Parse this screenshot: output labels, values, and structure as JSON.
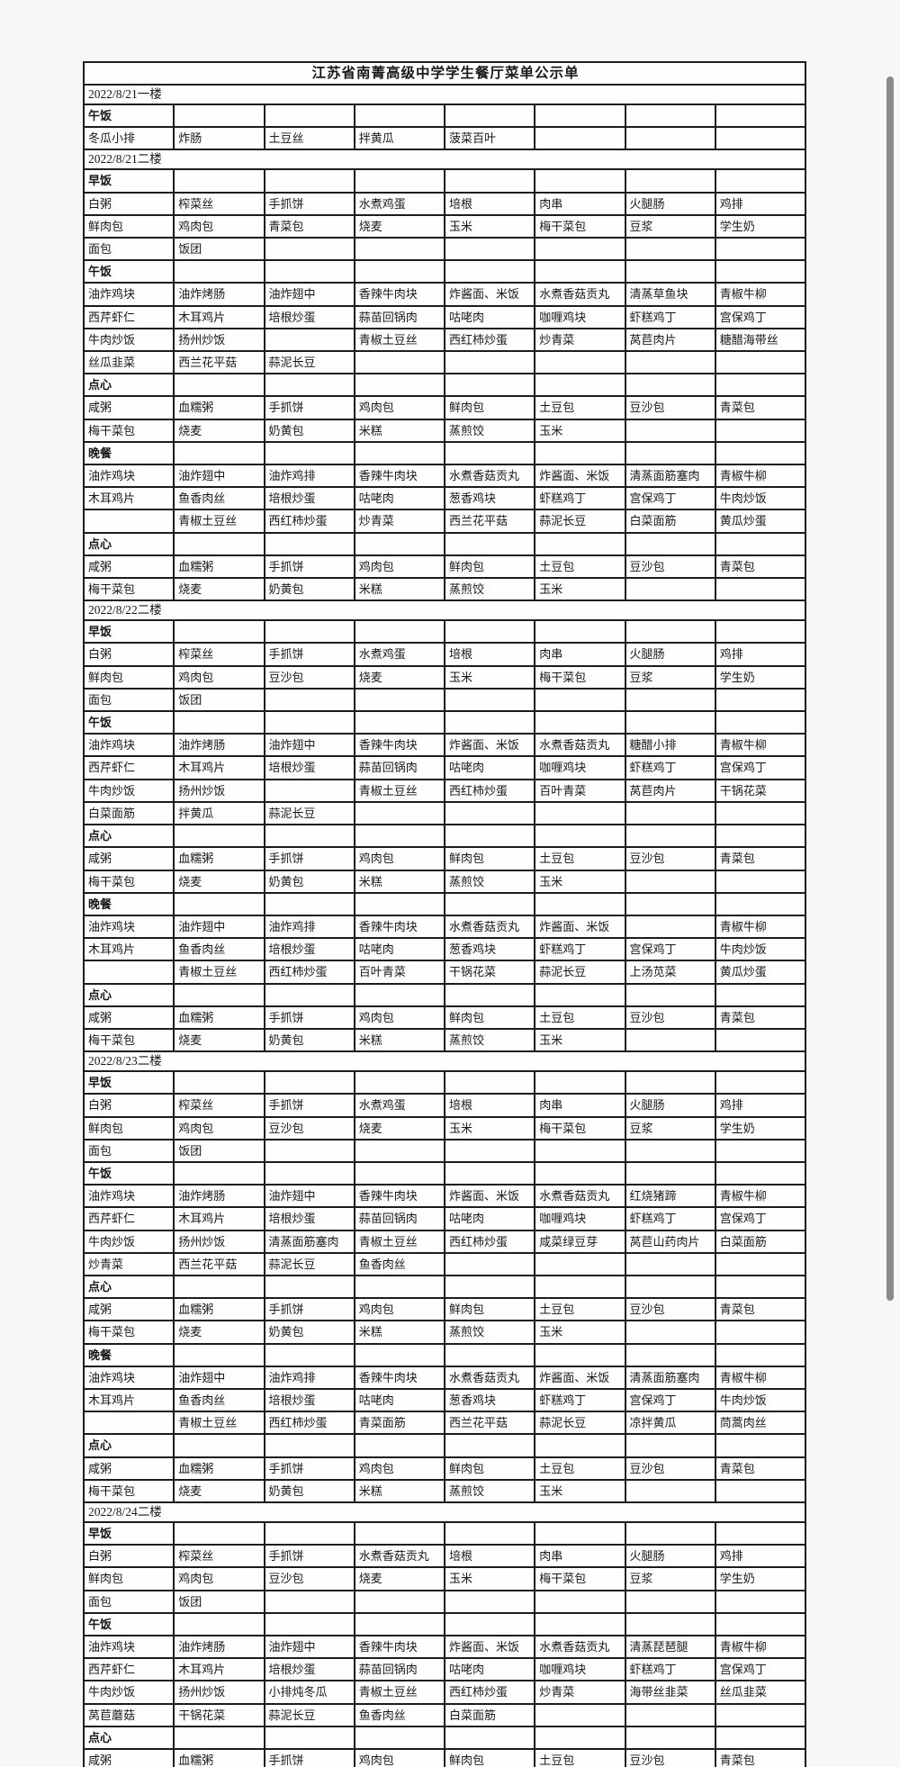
{
  "page": {
    "title": "江苏省南菁高级中学学生餐厅菜单公示单"
  },
  "colors": {
    "border": "#1c1c1c",
    "cell_background": "#fefefe",
    "page_background": "#f4f4f3",
    "scrollbar": "#8b8b8b"
  },
  "table": {
    "columns": 8,
    "rows": [
      {
        "type": "title",
        "text": "江苏省南菁高级中学学生餐厅菜单公示单"
      },
      {
        "type": "date",
        "text": "2022/8/21一楼"
      },
      {
        "type": "meal",
        "text": "午饭"
      },
      {
        "type": "dishes",
        "cells": [
          "冬瓜小排",
          "炸肠",
          "土豆丝",
          "拌黄瓜",
          "菠菜百叶",
          "",
          "",
          ""
        ]
      },
      {
        "type": "date",
        "text": "2022/8/21二楼"
      },
      {
        "type": "meal",
        "text": "早饭"
      },
      {
        "type": "dishes",
        "cells": [
          "白粥",
          "榨菜丝",
          "手抓饼",
          "水煮鸡蛋",
          "培根",
          "肉串",
          "火腿肠",
          "鸡排"
        ]
      },
      {
        "type": "dishes",
        "cells": [
          "鲜肉包",
          "鸡肉包",
          "青菜包",
          "烧麦",
          "玉米",
          "梅干菜包",
          "豆浆",
          "学生奶"
        ]
      },
      {
        "type": "dishes",
        "cells": [
          "面包",
          "饭团",
          "",
          "",
          "",
          "",
          "",
          ""
        ]
      },
      {
        "type": "meal",
        "text": "午饭"
      },
      {
        "type": "dishes",
        "cells": [
          "油炸鸡块",
          "油炸烤肠",
          "油炸翅中",
          "香辣牛肉块",
          "炸酱面、米饭",
          "水煮香菇贡丸",
          "清蒸草鱼块",
          "青椒牛柳"
        ]
      },
      {
        "type": "dishes",
        "cells": [
          "西芹虾仁",
          "木耳鸡片",
          "培根炒蛋",
          "蒜苗回锅肉",
          "咕咾肉",
          "咖喱鸡块",
          "虾糕鸡丁",
          "宫保鸡丁"
        ]
      },
      {
        "type": "dishes",
        "cells": [
          "牛肉炒饭",
          "扬州炒饭",
          "",
          "青椒土豆丝",
          "西红柿炒蛋",
          "炒青菜",
          "莴苣肉片",
          "糖醋海带丝"
        ]
      },
      {
        "type": "dishes",
        "cells": [
          "丝瓜韭菜",
          "西兰花平菇",
          "蒜泥长豆",
          "",
          "",
          "",
          "",
          ""
        ]
      },
      {
        "type": "meal",
        "text": "点心"
      },
      {
        "type": "dishes",
        "cells": [
          "咸粥",
          "血糯粥",
          "手抓饼",
          "鸡肉包",
          "鲜肉包",
          "土豆包",
          "豆沙包",
          "青菜包"
        ]
      },
      {
        "type": "dishes",
        "cells": [
          "梅干菜包",
          "烧麦",
          "奶黄包",
          "米糕",
          "蒸煎饺",
          "玉米",
          "",
          ""
        ]
      },
      {
        "type": "meal",
        "text": "晚餐"
      },
      {
        "type": "dishes",
        "cells": [
          "油炸鸡块",
          "油炸翅中",
          "油炸鸡排",
          "香辣牛肉块",
          "水煮香菇贡丸",
          "炸酱面、米饭",
          "清蒸面筋塞肉",
          "青椒牛柳"
        ]
      },
      {
        "type": "dishes",
        "cells": [
          "木耳鸡片",
          "鱼香肉丝",
          "培根炒蛋",
          "咕咾肉",
          "葱香鸡块",
          "虾糕鸡丁",
          "宫保鸡丁",
          "牛肉炒饭"
        ]
      },
      {
        "type": "dishes",
        "cells": [
          "",
          "青椒土豆丝",
          "西红柿炒蛋",
          "炒青菜",
          "西兰花平菇",
          "蒜泥长豆",
          "白菜面筋",
          "黄瓜炒蛋"
        ]
      },
      {
        "type": "meal",
        "text": "点心"
      },
      {
        "type": "dishes",
        "cells": [
          "咸粥",
          "血糯粥",
          "手抓饼",
          "鸡肉包",
          "鲜肉包",
          "土豆包",
          "豆沙包",
          "青菜包"
        ]
      },
      {
        "type": "dishes",
        "cells": [
          "梅干菜包",
          "烧麦",
          "奶黄包",
          "米糕",
          "蒸煎饺",
          "玉米",
          "",
          ""
        ]
      },
      {
        "type": "date",
        "text": "2022/8/22二楼"
      },
      {
        "type": "meal",
        "text": "早饭"
      },
      {
        "type": "dishes",
        "cells": [
          "白粥",
          "榨菜丝",
          "手抓饼",
          "水煮鸡蛋",
          "培根",
          "肉串",
          "火腿肠",
          "鸡排"
        ]
      },
      {
        "type": "dishes",
        "cells": [
          "鲜肉包",
          "鸡肉包",
          "豆沙包",
          "烧麦",
          "玉米",
          "梅干菜包",
          "豆浆",
          "学生奶"
        ]
      },
      {
        "type": "dishes",
        "cells": [
          "面包",
          "饭团",
          "",
          "",
          "",
          "",
          "",
          ""
        ]
      },
      {
        "type": "meal",
        "text": "午饭"
      },
      {
        "type": "dishes",
        "cells": [
          "油炸鸡块",
          "油炸烤肠",
          "油炸翅中",
          "香辣牛肉块",
          "炸酱面、米饭",
          "水煮香菇贡丸",
          "糖醋小排",
          "青椒牛柳"
        ]
      },
      {
        "type": "dishes",
        "cells": [
          "西芹虾仁",
          "木耳鸡片",
          "培根炒蛋",
          "蒜苗回锅肉",
          "咕咾肉",
          "咖喱鸡块",
          "虾糕鸡丁",
          "宫保鸡丁"
        ]
      },
      {
        "type": "dishes",
        "cells": [
          "牛肉炒饭",
          "扬州炒饭",
          "",
          "青椒土豆丝",
          "西红柿炒蛋",
          "百叶青菜",
          "莴苣肉片",
          "干锅花菜"
        ]
      },
      {
        "type": "dishes",
        "cells": [
          "白菜面筋",
          "拌黄瓜",
          "蒜泥长豆",
          "",
          "",
          "",
          "",
          ""
        ]
      },
      {
        "type": "meal",
        "text": "点心"
      },
      {
        "type": "dishes",
        "cells": [
          "咸粥",
          "血糯粥",
          "手抓饼",
          "鸡肉包",
          "鲜肉包",
          "土豆包",
          "豆沙包",
          "青菜包"
        ]
      },
      {
        "type": "dishes",
        "cells": [
          "梅干菜包",
          "烧麦",
          "奶黄包",
          "米糕",
          "蒸煎饺",
          "玉米",
          "",
          ""
        ]
      },
      {
        "type": "meal",
        "text": "晚餐"
      },
      {
        "type": "dishes",
        "cells": [
          "油炸鸡块",
          "油炸翅中",
          "油炸鸡排",
          "香辣牛肉块",
          "水煮香菇贡丸",
          "炸酱面、米饭",
          "",
          "青椒牛柳"
        ]
      },
      {
        "type": "dishes",
        "cells": [
          "木耳鸡片",
          "鱼香肉丝",
          "培根炒蛋",
          "咕咾肉",
          "葱香鸡块",
          "虾糕鸡丁",
          "宫保鸡丁",
          "牛肉炒饭"
        ]
      },
      {
        "type": "dishes",
        "cells": [
          "",
          "青椒土豆丝",
          "西红柿炒蛋",
          "百叶青菜",
          "干锅花菜",
          "蒜泥长豆",
          "上汤苋菜",
          "黄瓜炒蛋"
        ]
      },
      {
        "type": "meal",
        "text": "点心"
      },
      {
        "type": "dishes",
        "cells": [
          "咸粥",
          "血糯粥",
          "手抓饼",
          "鸡肉包",
          "鲜肉包",
          "土豆包",
          "豆沙包",
          "青菜包"
        ]
      },
      {
        "type": "dishes",
        "cells": [
          "梅干菜包",
          "烧麦",
          "奶黄包",
          "米糕",
          "蒸煎饺",
          "玉米",
          "",
          ""
        ]
      },
      {
        "type": "date",
        "text": "2022/8/23二楼"
      },
      {
        "type": "meal",
        "text": "早饭"
      },
      {
        "type": "dishes",
        "cells": [
          "白粥",
          "榨菜丝",
          "手抓饼",
          "水煮鸡蛋",
          "培根",
          "肉串",
          "火腿肠",
          "鸡排"
        ]
      },
      {
        "type": "dishes",
        "cells": [
          "鲜肉包",
          "鸡肉包",
          "豆沙包",
          "烧麦",
          "玉米",
          "梅干菜包",
          "豆浆",
          "学生奶"
        ]
      },
      {
        "type": "dishes",
        "cells": [
          "面包",
          "饭团",
          "",
          "",
          "",
          "",
          "",
          ""
        ]
      },
      {
        "type": "meal",
        "text": "午饭"
      },
      {
        "type": "dishes",
        "cells": [
          "油炸鸡块",
          "油炸烤肠",
          "油炸翅中",
          "香辣牛肉块",
          "炸酱面、米饭",
          "水煮香菇贡丸",
          "红烧猪蹄",
          "青椒牛柳"
        ]
      },
      {
        "type": "dishes",
        "cells": [
          "西芹虾仁",
          "木耳鸡片",
          "培根炒蛋",
          "蒜苗回锅肉",
          "咕咾肉",
          "咖喱鸡块",
          "虾糕鸡丁",
          "宫保鸡丁"
        ]
      },
      {
        "type": "dishes",
        "cells": [
          "牛肉炒饭",
          "扬州炒饭",
          "清蒸面筋塞肉",
          "青椒土豆丝",
          "西红柿炒蛋",
          "咸菜绿豆芽",
          "莴苣山药肉片",
          "白菜面筋"
        ]
      },
      {
        "type": "dishes",
        "cells": [
          "炒青菜",
          "西兰花平菇",
          "蒜泥长豆",
          "鱼香肉丝",
          "",
          "",
          "",
          ""
        ]
      },
      {
        "type": "meal",
        "text": "点心"
      },
      {
        "type": "dishes",
        "cells": [
          "咸粥",
          "血糯粥",
          "手抓饼",
          "鸡肉包",
          "鲜肉包",
          "土豆包",
          "豆沙包",
          "青菜包"
        ]
      },
      {
        "type": "dishes",
        "cells": [
          "梅干菜包",
          "烧麦",
          "奶黄包",
          "米糕",
          "蒸煎饺",
          "玉米",
          "",
          ""
        ]
      },
      {
        "type": "meal",
        "text": "晚餐"
      },
      {
        "type": "dishes",
        "cells": [
          "油炸鸡块",
          "油炸翅中",
          "油炸鸡排",
          "香辣牛肉块",
          "水煮香菇贡丸",
          "炸酱面、米饭",
          "清蒸面筋塞肉",
          "青椒牛柳"
        ]
      },
      {
        "type": "dishes",
        "cells": [
          "木耳鸡片",
          "鱼香肉丝",
          "培根炒蛋",
          "咕咾肉",
          "葱香鸡块",
          "虾糕鸡丁",
          "宫保鸡丁",
          "牛肉炒饭"
        ]
      },
      {
        "type": "dishes",
        "cells": [
          "",
          "青椒土豆丝",
          "西红柿炒蛋",
          "青菜面筋",
          "西兰花平菇",
          "蒜泥长豆",
          "凉拌黄瓜",
          "茼蒿肉丝"
        ]
      },
      {
        "type": "meal",
        "text": "点心"
      },
      {
        "type": "dishes",
        "cells": [
          "咸粥",
          "血糯粥",
          "手抓饼",
          "鸡肉包",
          "鲜肉包",
          "土豆包",
          "豆沙包",
          "青菜包"
        ]
      },
      {
        "type": "dishes",
        "cells": [
          "梅干菜包",
          "烧麦",
          "奶黄包",
          "米糕",
          "蒸煎饺",
          "玉米",
          "",
          ""
        ]
      },
      {
        "type": "date",
        "text": "2022/8/24二楼"
      },
      {
        "type": "meal",
        "text": "早饭"
      },
      {
        "type": "dishes",
        "cells": [
          "白粥",
          "榨菜丝",
          "手抓饼",
          "水煮香菇贡丸",
          "培根",
          "肉串",
          "火腿肠",
          "鸡排"
        ]
      },
      {
        "type": "dishes",
        "cells": [
          "鲜肉包",
          "鸡肉包",
          "豆沙包",
          "烧麦",
          "玉米",
          "梅干菜包",
          "豆浆",
          "学生奶"
        ]
      },
      {
        "type": "dishes",
        "cells": [
          "面包",
          "饭团",
          "",
          "",
          "",
          "",
          "",
          ""
        ]
      },
      {
        "type": "meal",
        "text": "午饭"
      },
      {
        "type": "dishes",
        "cells": [
          "油炸鸡块",
          "油炸烤肠",
          "油炸翅中",
          "香辣牛肉块",
          "炸酱面、米饭",
          "水煮香菇贡丸",
          "清蒸琵琶腿",
          "青椒牛柳"
        ]
      },
      {
        "type": "dishes",
        "cells": [
          "西芹虾仁",
          "木耳鸡片",
          "培根炒蛋",
          "蒜苗回锅肉",
          "咕咾肉",
          "咖喱鸡块",
          "虾糕鸡丁",
          "宫保鸡丁"
        ]
      },
      {
        "type": "dishes",
        "cells": [
          "牛肉炒饭",
          "扬州炒饭",
          "小排炖冬瓜",
          "青椒土豆丝",
          "西红柿炒蛋",
          "炒青菜",
          "海带丝韭菜",
          "丝瓜韭菜"
        ]
      },
      {
        "type": "dishes",
        "cells": [
          "莴苣蘑菇",
          "干锅花菜",
          "蒜泥长豆",
          "鱼香肉丝",
          "白菜面筋",
          "",
          "",
          ""
        ]
      },
      {
        "type": "meal",
        "text": "点心"
      },
      {
        "type": "dishes",
        "cells": [
          "咸粥",
          "血糯粥",
          "手抓饼",
          "鸡肉包",
          "鲜肉包",
          "土豆包",
          "豆沙包",
          "青菜包"
        ]
      }
    ]
  }
}
